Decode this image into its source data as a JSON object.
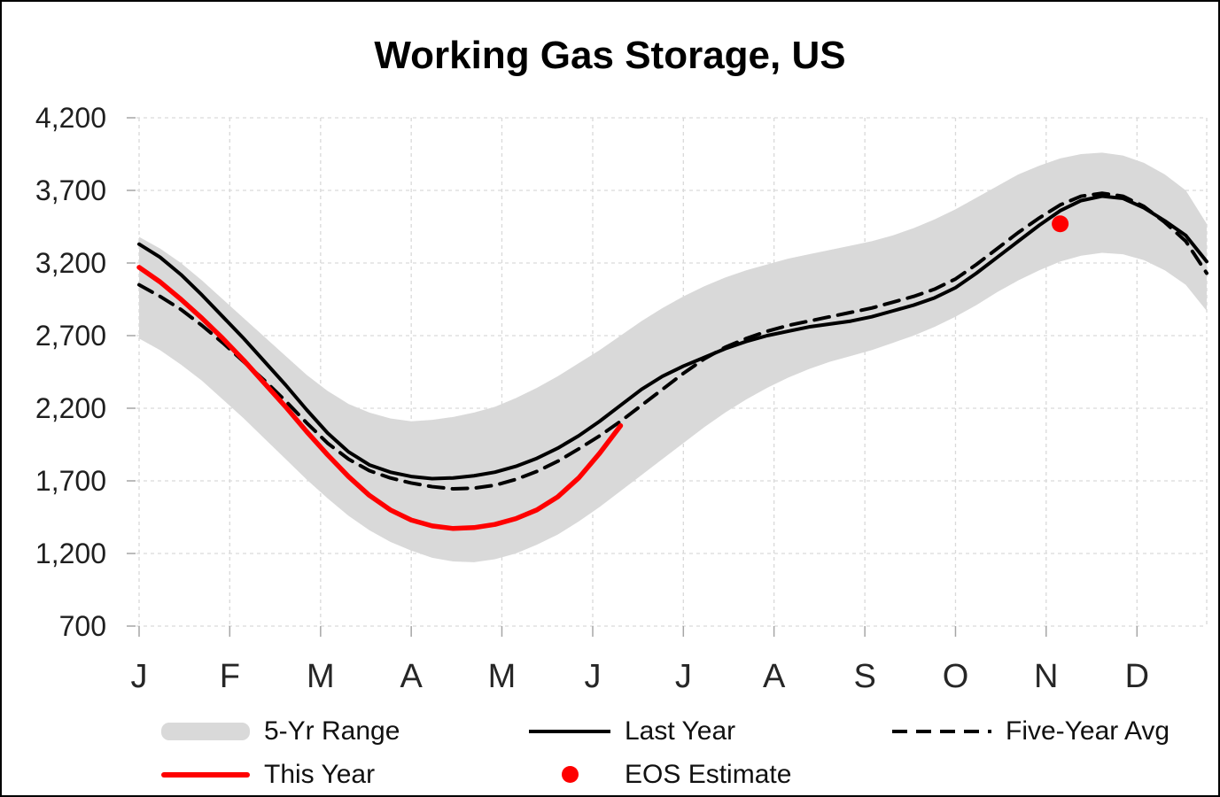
{
  "chart_data": {
    "type": "line",
    "title": "Working Gas Storage, US",
    "x_axis": {
      "months": [
        "J",
        "F",
        "M",
        "A",
        "M",
        "J",
        "J",
        "A",
        "S",
        "O",
        "N",
        "D"
      ],
      "points_per_year": 52
    },
    "y_axis": {
      "min": 700,
      "max": 4200,
      "tick_step": 500,
      "tick_labels": [
        "700",
        "1,200",
        "1,700",
        "2,200",
        "2,700",
        "3,200",
        "3,700",
        "4,200"
      ]
    },
    "grid": "dashed-light",
    "legend_position": "bottom",
    "series": [
      {
        "name": "5-Yr Range",
        "kind": "band",
        "color": "#d9d9d9",
        "min": [
          2680,
          2600,
          2500,
          2390,
          2260,
          2130,
          1990,
          1850,
          1710,
          1580,
          1460,
          1360,
          1280,
          1220,
          1170,
          1145,
          1140,
          1160,
          1200,
          1260,
          1330,
          1420,
          1520,
          1630,
          1740,
          1850,
          1960,
          2070,
          2170,
          2260,
          2340,
          2410,
          2470,
          2520,
          2560,
          2600,
          2650,
          2700,
          2760,
          2830,
          2910,
          3000,
          3080,
          3150,
          3210,
          3250,
          3270,
          3260,
          3220,
          3150,
          3050,
          2870
        ],
        "max": [
          3380,
          3300,
          3200,
          3080,
          2950,
          2820,
          2690,
          2560,
          2430,
          2320,
          2230,
          2170,
          2130,
          2110,
          2120,
          2140,
          2170,
          2210,
          2270,
          2340,
          2420,
          2510,
          2600,
          2700,
          2800,
          2890,
          2970,
          3040,
          3100,
          3150,
          3190,
          3230,
          3260,
          3290,
          3320,
          3350,
          3390,
          3440,
          3500,
          3570,
          3650,
          3730,
          3810,
          3870,
          3920,
          3950,
          3960,
          3940,
          3890,
          3810,
          3700,
          3470
        ]
      },
      {
        "name": "Last Year",
        "kind": "line",
        "style": "solid",
        "color": "#000000",
        "values": [
          3330,
          3240,
          3120,
          2980,
          2830,
          2680,
          2520,
          2360,
          2190,
          2030,
          1900,
          1810,
          1760,
          1730,
          1715,
          1720,
          1735,
          1760,
          1800,
          1855,
          1925,
          2010,
          2110,
          2220,
          2330,
          2420,
          2490,
          2550,
          2610,
          2660,
          2700,
          2730,
          2760,
          2780,
          2800,
          2830,
          2870,
          2910,
          2960,
          3030,
          3130,
          3240,
          3350,
          3460,
          3560,
          3630,
          3660,
          3645,
          3580,
          3490,
          3390,
          3210
        ]
      },
      {
        "name": "Five-Year Avg",
        "kind": "line",
        "style": "dashed",
        "color": "#000000",
        "values": [
          3050,
          2970,
          2880,
          2770,
          2650,
          2520,
          2390,
          2250,
          2100,
          1960,
          1850,
          1770,
          1720,
          1685,
          1660,
          1645,
          1650,
          1670,
          1710,
          1765,
          1835,
          1920,
          2010,
          2110,
          2220,
          2330,
          2440,
          2540,
          2620,
          2680,
          2730,
          2770,
          2800,
          2830,
          2860,
          2890,
          2930,
          2970,
          3020,
          3090,
          3190,
          3300,
          3410,
          3510,
          3600,
          3660,
          3680,
          3660,
          3590,
          3480,
          3350,
          3130
        ]
      },
      {
        "name": "This Year",
        "kind": "line",
        "style": "solid",
        "color": "#fe0000",
        "values": [
          3170,
          3070,
          2950,
          2820,
          2680,
          2530,
          2370,
          2210,
          2040,
          1880,
          1730,
          1600,
          1500,
          1430,
          1390,
          1372,
          1378,
          1400,
          1440,
          1500,
          1590,
          1720,
          1890,
          2080
        ]
      },
      {
        "name": "EOS Estimate",
        "kind": "point",
        "color": "#fe0000",
        "week_index": 44,
        "value": 3470
      }
    ]
  }
}
